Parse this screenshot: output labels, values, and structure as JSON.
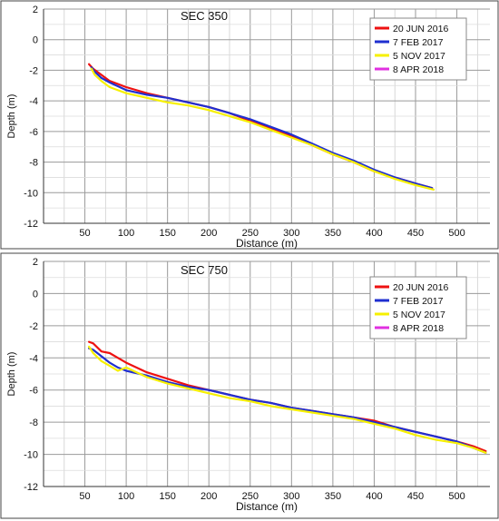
{
  "chart_data": [
    {
      "type": "line",
      "title": "SEC 350",
      "xlabel": "Distance (m)",
      "ylabel": "Depth (m)",
      "xlim": [
        0,
        540
      ],
      "ylim": [
        -12,
        2
      ],
      "xticks": [
        50,
        100,
        150,
        200,
        250,
        300,
        350,
        400,
        450,
        500
      ],
      "yticks": [
        2,
        0,
        -2,
        -4,
        -6,
        -8,
        -10,
        -12
      ],
      "grid": true,
      "legend_position": "top-right",
      "series": [
        {
          "name": "20 JUN 2016",
          "color": "#ee1111",
          "x": [
            55,
            60,
            70,
            80,
            100,
            125,
            150,
            175,
            200,
            225,
            250,
            275,
            300,
            325,
            350,
            375,
            400,
            425,
            450,
            470
          ],
          "y": [
            -1.6,
            -1.9,
            -2.3,
            -2.7,
            -3.1,
            -3.5,
            -3.8,
            -4.1,
            -4.4,
            -4.8,
            -5.3,
            -5.8,
            -6.3,
            -6.9,
            -7.5,
            -8.0,
            -8.6,
            -9.0,
            -9.4,
            -9.7
          ]
        },
        {
          "name": "7 FEB 2017",
          "color": "#1f2fd0",
          "x": [
            58,
            62,
            70,
            80,
            100,
            125,
            150,
            175,
            200,
            225,
            250,
            275,
            300,
            325,
            350,
            375,
            400,
            425,
            450,
            470
          ],
          "y": [
            -1.8,
            -2.1,
            -2.5,
            -2.8,
            -3.3,
            -3.6,
            -3.8,
            -4.1,
            -4.4,
            -4.8,
            -5.2,
            -5.7,
            -6.2,
            -6.8,
            -7.4,
            -7.9,
            -8.5,
            -9.0,
            -9.4,
            -9.7
          ]
        },
        {
          "name": "5 NOV 2017",
          "color": "#f6f000",
          "x": [
            58,
            62,
            70,
            80,
            100,
            125,
            150,
            175,
            200,
            225,
            250,
            275,
            300,
            325,
            350,
            375,
            400,
            425,
            450,
            472
          ],
          "y": [
            -1.9,
            -2.3,
            -2.7,
            -3.1,
            -3.5,
            -3.8,
            -4.1,
            -4.3,
            -4.6,
            -5.0,
            -5.4,
            -5.9,
            -6.4,
            -6.9,
            -7.5,
            -8.0,
            -8.6,
            -9.1,
            -9.5,
            -9.8
          ]
        },
        {
          "name": "8 APR 2018",
          "color": "#e030e0",
          "x": [],
          "y": []
        }
      ]
    },
    {
      "type": "line",
      "title": "SEC 750",
      "xlabel": "Distance (m)",
      "ylabel": "Depth (m)",
      "xlim": [
        0,
        540
      ],
      "ylim": [
        -12,
        2
      ],
      "xticks": [
        50,
        100,
        150,
        200,
        250,
        300,
        350,
        400,
        450,
        500
      ],
      "yticks": [
        2,
        0,
        -2,
        -4,
        -6,
        -8,
        -10,
        -12
      ],
      "grid": true,
      "legend_position": "top-right",
      "series": [
        {
          "name": "20 JUN 2016",
          "color": "#ee1111",
          "x": [
            55,
            60,
            70,
            80,
            90,
            100,
            125,
            150,
            175,
            200,
            225,
            250,
            275,
            300,
            325,
            350,
            375,
            400,
            425,
            450,
            475,
            500,
            520,
            535
          ],
          "y": [
            -3.0,
            -3.1,
            -3.6,
            -3.7,
            -4.0,
            -4.3,
            -4.9,
            -5.3,
            -5.7,
            -6.0,
            -6.3,
            -6.6,
            -6.8,
            -7.1,
            -7.3,
            -7.5,
            -7.7,
            -7.9,
            -8.3,
            -8.6,
            -8.9,
            -9.2,
            -9.5,
            -9.8
          ]
        },
        {
          "name": "7 FEB 2017",
          "color": "#1f2fd0",
          "x": [
            55,
            60,
            70,
            80,
            90,
            100,
            125,
            150,
            175,
            200,
            225,
            250,
            275,
            300,
            325,
            350,
            375,
            400,
            425,
            450,
            475,
            500,
            520,
            535
          ],
          "y": [
            -3.4,
            -3.5,
            -3.9,
            -4.3,
            -4.6,
            -4.8,
            -5.1,
            -5.5,
            -5.8,
            -6.0,
            -6.3,
            -6.6,
            -6.8,
            -7.1,
            -7.3,
            -7.5,
            -7.7,
            -8.0,
            -8.3,
            -8.6,
            -8.9,
            -9.2,
            -9.6,
            -9.9
          ]
        },
        {
          "name": "5 NOV 2017",
          "color": "#f6f000",
          "x": [
            55,
            60,
            70,
            80,
            90,
            100,
            125,
            150,
            175,
            200,
            225,
            250,
            275,
            300,
            325,
            350,
            375,
            400,
            425,
            450,
            475,
            500,
            520,
            535
          ],
          "y": [
            -3.3,
            -3.7,
            -4.2,
            -4.5,
            -4.8,
            -4.6,
            -5.2,
            -5.6,
            -5.9,
            -6.2,
            -6.5,
            -6.7,
            -7.0,
            -7.2,
            -7.4,
            -7.6,
            -7.8,
            -8.1,
            -8.4,
            -8.8,
            -9.1,
            -9.3,
            -9.6,
            -9.9
          ]
        },
        {
          "name": "8 APR 2018",
          "color": "#e030e0",
          "x": [],
          "y": []
        }
      ]
    }
  ]
}
